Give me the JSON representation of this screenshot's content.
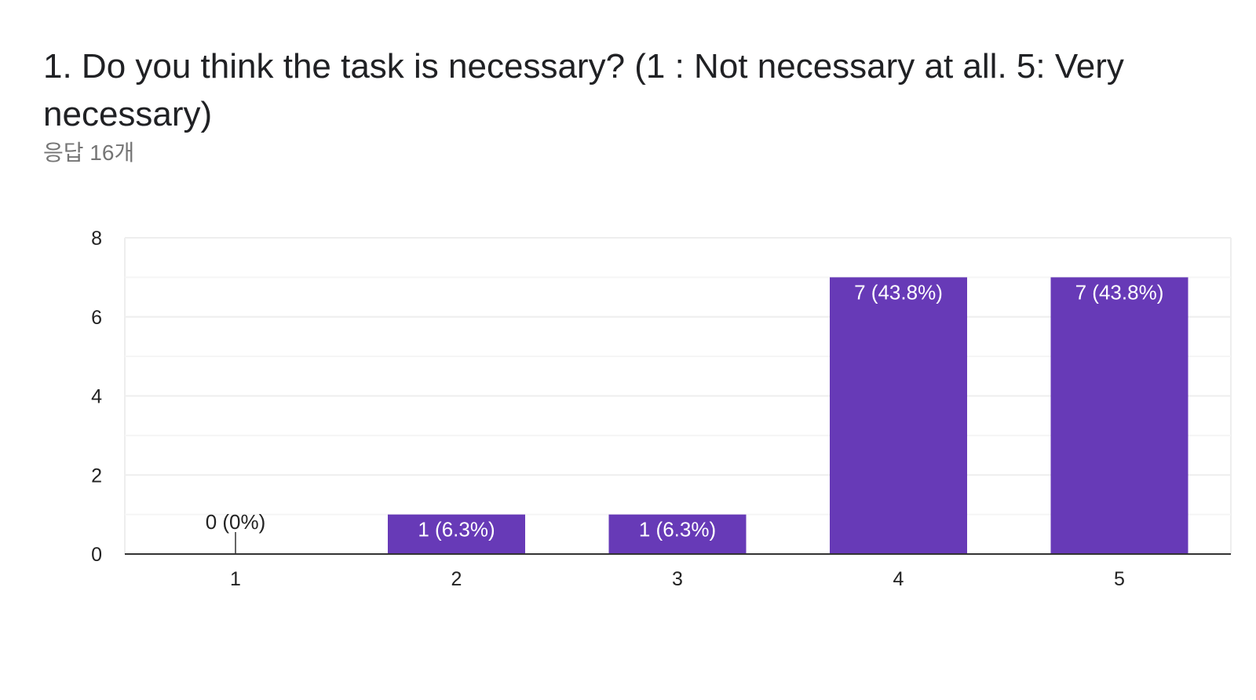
{
  "question": {
    "title": "1. Do you think the task is necessary? (1 : Not necessary at all. 5: Very necessary)",
    "response_count": "응답 16개"
  },
  "colors": {
    "bar": "#673ab7",
    "grid": "#eeeeee",
    "minor_grid": "#f5f5f5",
    "axis": "#333333"
  },
  "chart_data": {
    "type": "bar",
    "title": "1. Do you think the task is necessary? (1 : Not necessary at all. 5: Very necessary)",
    "categories": [
      "1",
      "2",
      "3",
      "4",
      "5"
    ],
    "values": [
      0,
      1,
      1,
      7,
      7
    ],
    "data_labels": [
      "0 (0%)",
      "1 (6.3%)",
      "1 (6.3%)",
      "7 (43.8%)",
      "7 (43.8%)"
    ],
    "ylim": [
      0,
      8
    ],
    "yticks": [
      0,
      2,
      4,
      6,
      8
    ],
    "grid": true,
    "legend": "none"
  }
}
